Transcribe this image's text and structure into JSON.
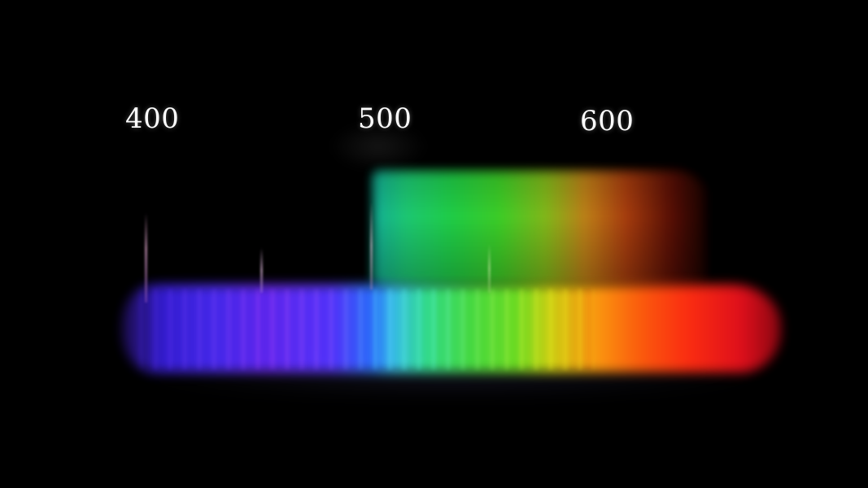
{
  "scale_labels": {
    "nm_400": "400",
    "nm_500": "500",
    "nm_600": "600"
  },
  "colors": {
    "background": "#000000",
    "label": "#ffffff"
  }
}
